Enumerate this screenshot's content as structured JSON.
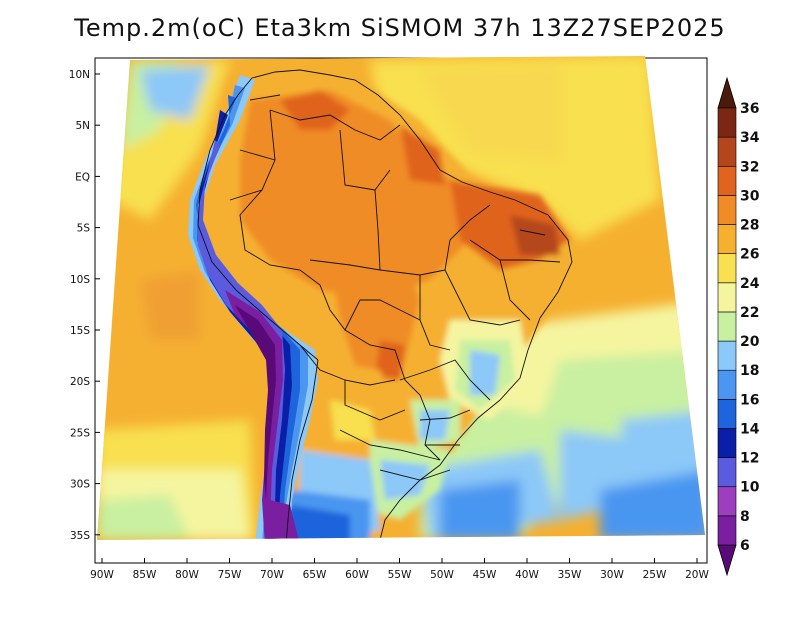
{
  "title": "Temp.2m(oC) Eta3km SiSMOM 37h 13Z27SEP2025",
  "map": {
    "lat_labels": [
      "10N",
      "5N",
      "EQ",
      "5S",
      "10S",
      "15S",
      "20S",
      "25S",
      "30S",
      "35S"
    ],
    "lon_labels": [
      "90W",
      "85W",
      "80W",
      "75W",
      "70W",
      "65W",
      "60W",
      "55W",
      "50W",
      "45W",
      "40W",
      "35W",
      "30W",
      "25W",
      "20W"
    ],
    "variable": "2 m temperature",
    "units": "oC",
    "model": "Eta3km SiSMOM",
    "forecast_hour": "37h",
    "valid_time": "13Z27SEP2025"
  },
  "colorbar": {
    "labels": [
      "6",
      "8",
      "10",
      "12",
      "14",
      "16",
      "18",
      "20",
      "22",
      "24",
      "26",
      "28",
      "30",
      "32",
      "34",
      "36"
    ],
    "levels": [
      6,
      8,
      10,
      12,
      14,
      16,
      18,
      20,
      22,
      24,
      26,
      28,
      30,
      32,
      34,
      36
    ],
    "colors": [
      "#5a0a78",
      "#7a1fa0",
      "#9b3fbf",
      "#5b5be0",
      "#0a1fa8",
      "#1e64dc",
      "#4a96f0",
      "#8cc8f8",
      "#c8f0a0",
      "#f5f5a0",
      "#f8e050",
      "#f5b030",
      "#f08c28",
      "#e0641e",
      "#b4461e",
      "#7a2814",
      "#4a1a0a"
    ]
  }
}
